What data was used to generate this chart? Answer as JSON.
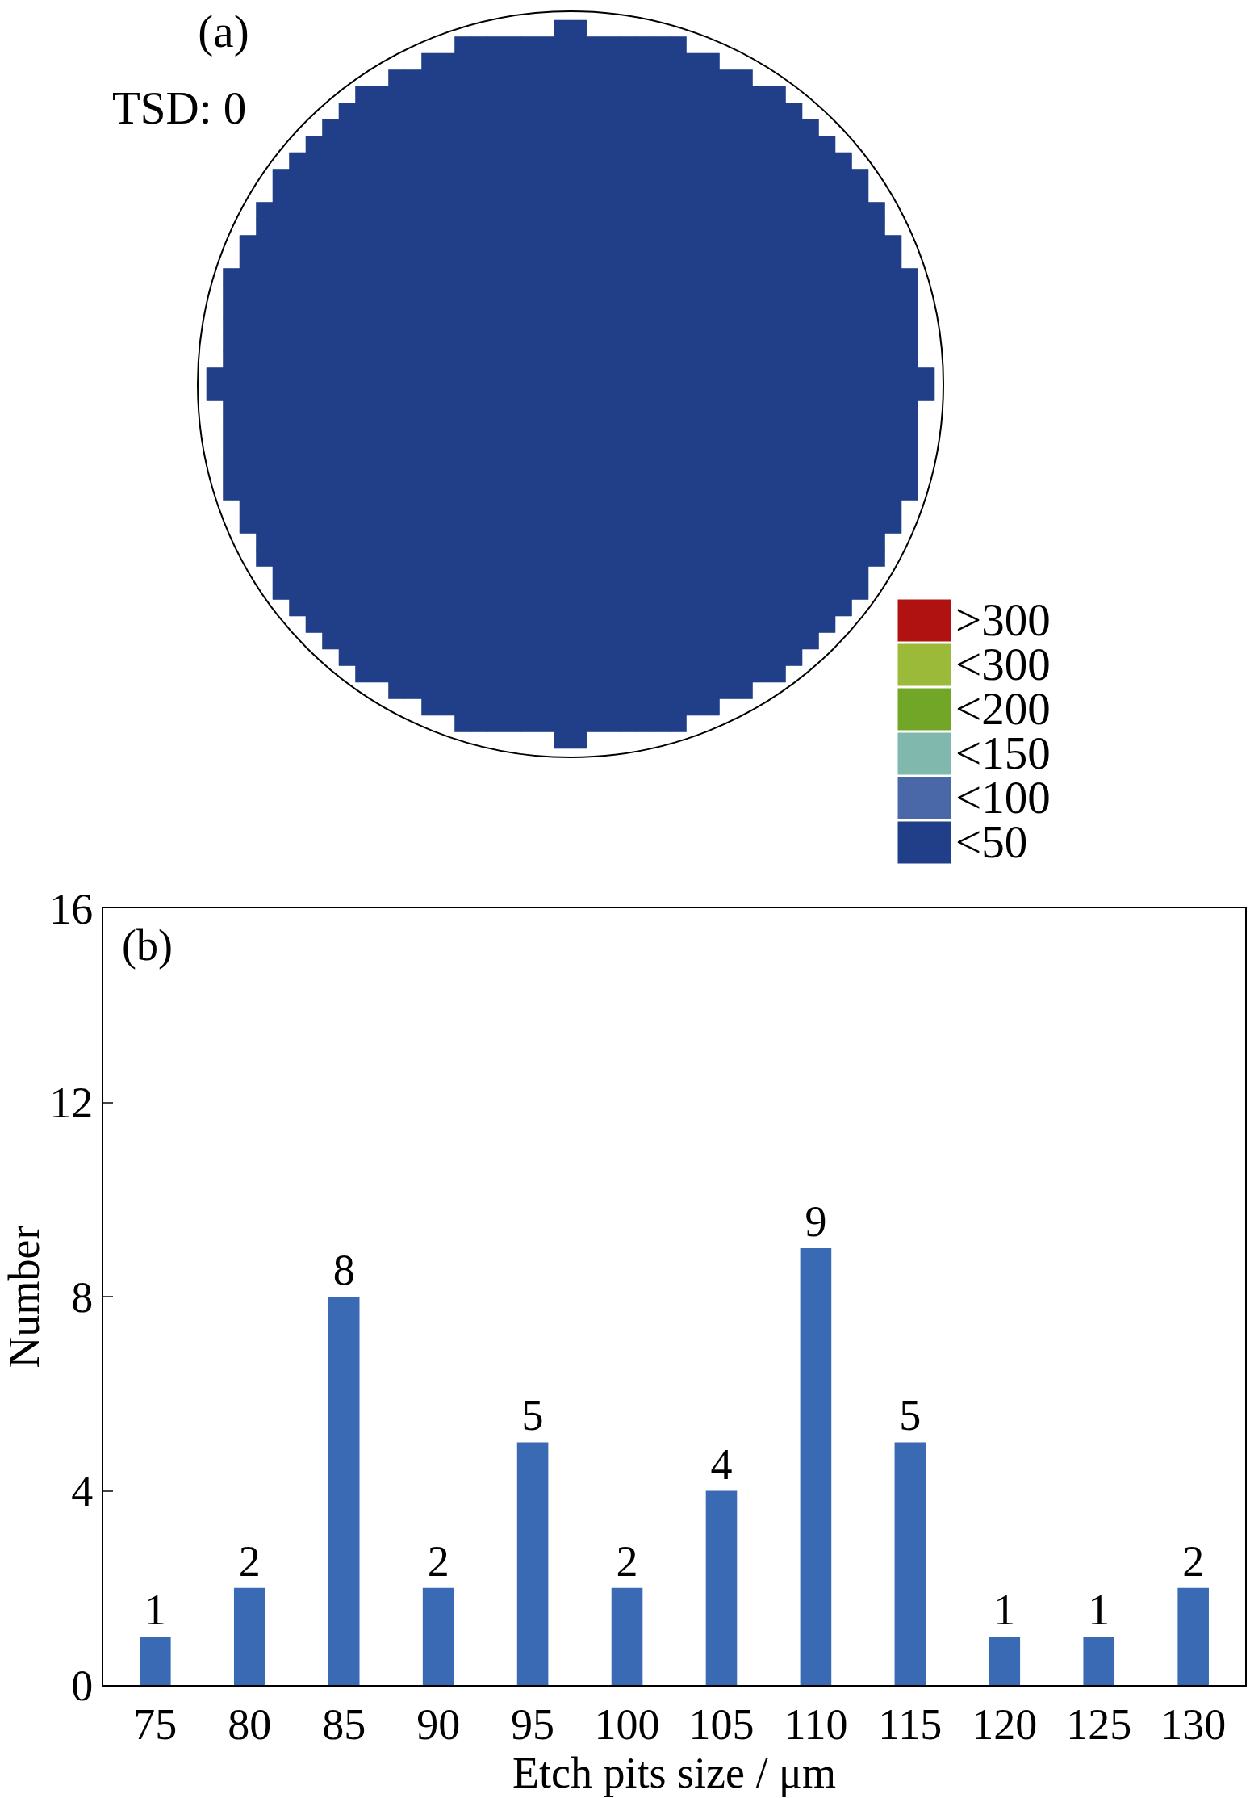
{
  "chart_data": [
    {
      "type": "other",
      "title": "(a)",
      "annotations": [
        "TSD: 0"
      ],
      "categories": [
        ">300",
        "<300",
        "<200",
        "<150",
        "<100",
        "<50"
      ],
      "colors": [
        "#b01212",
        "#9cba3a",
        "#72a626",
        "#80b8ae",
        "#4a68a8",
        "#213f88"
      ]
    },
    {
      "type": "bar",
      "annotations": [
        "(b)"
      ],
      "xlabel": "Etch pits size / μm",
      "ylabel": "Number",
      "categories": [
        "75",
        "80",
        "85",
        "90",
        "95",
        "100",
        "105",
        "110",
        "115",
        "120",
        "125",
        "130"
      ],
      "values": [
        1,
        2,
        8,
        2,
        5,
        2,
        4,
        9,
        5,
        1,
        1,
        2
      ],
      "color": "#3a6ab4",
      "ylim": [
        0,
        16
      ],
      "yticks": [
        0,
        4,
        8,
        12,
        16
      ],
      "grid": false,
      "data_labels": true
    }
  ]
}
